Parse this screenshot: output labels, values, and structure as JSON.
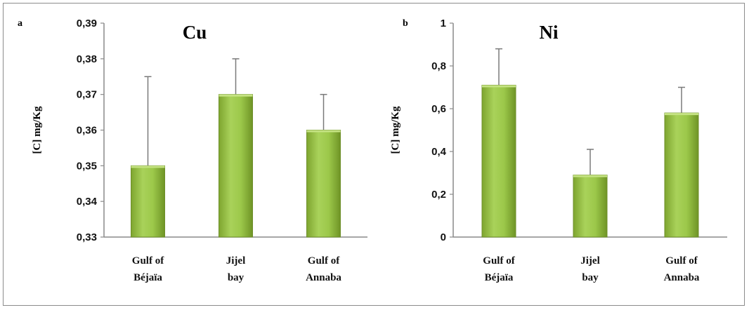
{
  "chart_data": [
    {
      "type": "bar",
      "panel": "a",
      "title": "Cu",
      "ylabel": "[C] mg/Kg",
      "xlabel": "",
      "ylim": [
        0.33,
        0.39
      ],
      "yticks": [
        "0,33",
        "0,34",
        "0,35",
        "0,36",
        "0,37",
        "0,38",
        "0,39"
      ],
      "categories": [
        [
          "Gulf of",
          "Béjaïa"
        ],
        [
          "Jijel",
          "bay"
        ],
        [
          "Gulf of",
          "Annaba"
        ]
      ],
      "values": [
        0.35,
        0.37,
        0.36
      ],
      "error_upper": [
        0.375,
        0.38,
        0.37
      ],
      "grid": false,
      "bar_color": "#95c23d"
    },
    {
      "type": "bar",
      "panel": "b",
      "title": "Ni",
      "ylabel": "[C] mg/Kg",
      "xlabel": "",
      "ylim": [
        0,
        1
      ],
      "yticks": [
        "0",
        "0,2",
        "0,4",
        "0,6",
        "0,8",
        "1"
      ],
      "categories": [
        [
          "Gulf of",
          "Béjaïa"
        ],
        [
          "Jijel",
          "bay"
        ],
        [
          "Gulf of",
          "Annaba"
        ]
      ],
      "values": [
        0.71,
        0.29,
        0.58
      ],
      "error_upper": [
        0.88,
        0.41,
        0.7
      ],
      "grid": false,
      "bar_color": "#95c23d"
    }
  ]
}
